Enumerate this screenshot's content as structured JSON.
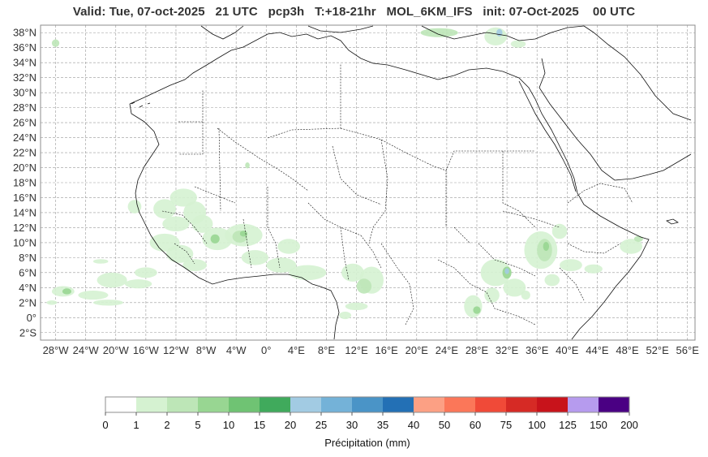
{
  "title": "Valid: Tue, 07-oct-2025   21 UTC   pcp3h   T:+18-21hr   MOL_6KM_IFS   init: 07-Oct-2025    00 UTC",
  "map": {
    "lon_range": [
      -30,
      57
    ],
    "lat_range": [
      -3,
      39
    ],
    "lat_ticks": [
      {
        "value": 38,
        "label": "38°N"
      },
      {
        "value": 36,
        "label": "36°N"
      },
      {
        "value": 34,
        "label": "34°N"
      },
      {
        "value": 32,
        "label": "32°N"
      },
      {
        "value": 30,
        "label": "30°N"
      },
      {
        "value": 28,
        "label": "28°N"
      },
      {
        "value": 26,
        "label": "26°N"
      },
      {
        "value": 24,
        "label": "24°N"
      },
      {
        "value": 22,
        "label": "22°N"
      },
      {
        "value": 20,
        "label": "20°N"
      },
      {
        "value": 18,
        "label": "18°N"
      },
      {
        "value": 16,
        "label": "16°N"
      },
      {
        "value": 14,
        "label": "14°N"
      },
      {
        "value": 12,
        "label": "12°N"
      },
      {
        "value": 10,
        "label": "10°N"
      },
      {
        "value": 8,
        "label": "8°N"
      },
      {
        "value": 6,
        "label": "6°N"
      },
      {
        "value": 4,
        "label": "4°N"
      },
      {
        "value": 2,
        "label": "2°N"
      },
      {
        "value": 0,
        "label": "0°"
      },
      {
        "value": -2,
        "label": "2°S"
      }
    ],
    "lon_ticks": [
      {
        "value": -28,
        "label": "28°W"
      },
      {
        "value": -24,
        "label": "24°W"
      },
      {
        "value": -20,
        "label": "20°W"
      },
      {
        "value": -16,
        "label": "16°W"
      },
      {
        "value": -12,
        "label": "12°W"
      },
      {
        "value": -8,
        "label": "8°W"
      },
      {
        "value": -4,
        "label": "4°W"
      },
      {
        "value": 0,
        "label": "0°"
      },
      {
        "value": 4,
        "label": "4°E"
      },
      {
        "value": 8,
        "label": "8°E"
      },
      {
        "value": 12,
        "label": "12°E"
      },
      {
        "value": 16,
        "label": "16°E"
      },
      {
        "value": 20,
        "label": "20°E"
      },
      {
        "value": 24,
        "label": "24°E"
      },
      {
        "value": 28,
        "label": "28°E"
      },
      {
        "value": 32,
        "label": "32°E"
      },
      {
        "value": 36,
        "label": "36°E"
      },
      {
        "value": 40,
        "label": "40°E"
      },
      {
        "value": 44,
        "label": "44°E"
      },
      {
        "value": 48,
        "label": "48°E"
      },
      {
        "value": 52,
        "label": "52°E"
      },
      {
        "value": 56,
        "label": "56°E"
      }
    ],
    "grid": true,
    "coast_color": "#111111",
    "precip_areas": [
      {
        "lon": -17.5,
        "lat": 14.8,
        "rlon": 0.9,
        "rlat": 0.9,
        "level": 1
      },
      {
        "lon": -13.5,
        "lat": 14.5,
        "rlon": 1.5,
        "rlat": 1.3,
        "level": 1
      },
      {
        "lon": -11.0,
        "lat": 16.0,
        "rlon": 1.8,
        "rlat": 1.2,
        "level": 1
      },
      {
        "lon": -9.5,
        "lat": 14.0,
        "rlon": 1.5,
        "rlat": 1.5,
        "level": 1
      },
      {
        "lon": -8.5,
        "lat": 12.5,
        "rlon": 1.4,
        "rlat": 1.2,
        "level": 1
      },
      {
        "lon": -12.0,
        "lat": 12.5,
        "rlon": 1.8,
        "rlat": 1.0,
        "level": 1
      },
      {
        "lon": -13.5,
        "lat": 10.0,
        "rlon": 2.0,
        "rlat": 1.2,
        "level": 1
      },
      {
        "lon": -11.5,
        "lat": 8.5,
        "rlon": 1.8,
        "rlat": 1.2,
        "level": 1
      },
      {
        "lon": -9.5,
        "lat": 7.0,
        "rlon": 1.6,
        "rlat": 0.8,
        "level": 1
      },
      {
        "lon": -6.5,
        "lat": 10.5,
        "rlon": 2.0,
        "rlat": 1.5,
        "level": 1
      },
      {
        "lon": -6.8,
        "lat": 10.5,
        "rlon": 0.6,
        "rlat": 0.6,
        "level": 3
      },
      {
        "lon": -3.0,
        "lat": 11.0,
        "rlon": 2.5,
        "rlat": 1.5,
        "level": 1
      },
      {
        "lon": -3.5,
        "lat": 10.8,
        "rlon": 1.0,
        "rlat": 0.8,
        "level": 2
      },
      {
        "lon": -3.0,
        "lat": 11.2,
        "rlon": 0.5,
        "rlat": 0.4,
        "level": 3
      },
      {
        "lon": -1.5,
        "lat": 8.0,
        "rlon": 1.8,
        "rlat": 1.0,
        "level": 1
      },
      {
        "lon": 2.0,
        "lat": 7.0,
        "rlon": 2.0,
        "rlat": 1.0,
        "level": 1
      },
      {
        "lon": 5.5,
        "lat": 6.0,
        "rlon": 2.5,
        "rlat": 1.0,
        "level": 1
      },
      {
        "lon": 3.0,
        "lat": 9.5,
        "rlon": 1.5,
        "rlat": 1.0,
        "level": 1
      },
      {
        "lon": 11.5,
        "lat": 6.0,
        "rlon": 1.5,
        "rlat": 1.2,
        "level": 1
      },
      {
        "lon": 14.0,
        "lat": 5.0,
        "rlon": 1.6,
        "rlat": 1.8,
        "level": 1
      },
      {
        "lon": 13.0,
        "lat": 4.2,
        "rlon": 1.0,
        "rlat": 1.0,
        "level": 2
      },
      {
        "lon": 12.0,
        "lat": 1.5,
        "rlon": 1.5,
        "rlat": 0.5,
        "level": 1
      },
      {
        "lon": 10.5,
        "lat": 0.3,
        "rlon": 0.8,
        "rlat": 0.5,
        "level": 1
      },
      {
        "lon": 27.5,
        "lat": 1.5,
        "rlon": 1.2,
        "rlat": 1.5,
        "level": 1
      },
      {
        "lon": 28.0,
        "lat": 1.0,
        "rlon": 0.5,
        "rlat": 0.5,
        "level": 3
      },
      {
        "lon": 30.5,
        "lat": 6.0,
        "rlon": 2.0,
        "rlat": 1.8,
        "level": 1
      },
      {
        "lon": 32.0,
        "lat": 6.0,
        "rlon": 0.6,
        "rlat": 0.8,
        "level": 3
      },
      {
        "lon": 32.0,
        "lat": 6.2,
        "rlon": 0.3,
        "rlat": 0.4,
        "level": 6
      },
      {
        "lon": 33.0,
        "lat": 4.0,
        "rlon": 1.5,
        "rlat": 1.2,
        "level": 1
      },
      {
        "lon": 30.0,
        "lat": 3.0,
        "rlon": 1.0,
        "rlat": 1.0,
        "level": 1
      },
      {
        "lon": 36.5,
        "lat": 9.0,
        "rlon": 2.2,
        "rlat": 2.5,
        "level": 1
      },
      {
        "lon": 37.0,
        "lat": 9.0,
        "rlon": 1.0,
        "rlat": 1.5,
        "level": 2
      },
      {
        "lon": 37.2,
        "lat": 9.5,
        "rlon": 0.4,
        "rlat": 0.6,
        "level": 3
      },
      {
        "lon": 39.0,
        "lat": 11.5,
        "rlon": 1.0,
        "rlat": 1.0,
        "level": 1
      },
      {
        "lon": 40.5,
        "lat": 7.0,
        "rlon": 1.5,
        "rlat": 0.8,
        "level": 1
      },
      {
        "lon": 38.0,
        "lat": 5.0,
        "rlon": 1.0,
        "rlat": 0.8,
        "level": 1
      },
      {
        "lon": 43.5,
        "lat": 6.5,
        "rlon": 1.2,
        "rlat": 0.6,
        "level": 1
      },
      {
        "lon": 48.5,
        "lat": 9.5,
        "rlon": 1.5,
        "rlat": 1.0,
        "level": 1
      },
      {
        "lon": 49.5,
        "lat": 10.5,
        "rlon": 0.6,
        "rlat": 0.4,
        "level": 2
      },
      {
        "lon": 34.5,
        "lat": 3.0,
        "rlon": 0.6,
        "rlat": 0.6,
        "level": 1
      },
      {
        "lon": -27.0,
        "lat": 3.5,
        "rlon": 1.5,
        "rlat": 0.7,
        "level": 1
      },
      {
        "lon": -26.5,
        "lat": 3.5,
        "rlon": 0.6,
        "rlat": 0.4,
        "level": 3
      },
      {
        "lon": -23.0,
        "lat": 3.0,
        "rlon": 2.0,
        "rlat": 0.6,
        "level": 1
      },
      {
        "lon": -20.5,
        "lat": 5.0,
        "rlon": 2.0,
        "rlat": 1.0,
        "level": 1
      },
      {
        "lon": -17.0,
        "lat": 4.5,
        "rlon": 1.8,
        "rlat": 0.6,
        "level": 1
      },
      {
        "lon": -16.0,
        "lat": 6.0,
        "rlon": 1.5,
        "rlat": 0.7,
        "level": 1
      },
      {
        "lon": -21.0,
        "lat": 2.0,
        "rlon": 2.0,
        "rlat": 0.4,
        "level": 1
      },
      {
        "lon": -28.5,
        "lat": 2.0,
        "rlon": 0.7,
        "rlat": 0.3,
        "level": 1
      },
      {
        "lon": -22.0,
        "lat": 7.5,
        "rlon": 1.0,
        "rlat": 0.3,
        "level": 1
      },
      {
        "lon": -28.0,
        "lat": 36.6,
        "rlon": 0.5,
        "rlat": 0.5,
        "level": 2
      },
      {
        "lon": 23.0,
        "lat": 38.0,
        "rlon": 2.5,
        "rlat": 0.6,
        "level": 2
      },
      {
        "lon": 30.5,
        "lat": 37.5,
        "rlon": 1.5,
        "rlat": 1.2,
        "level": 1
      },
      {
        "lon": 31.0,
        "lat": 38.0,
        "rlon": 0.4,
        "rlat": 0.5,
        "level": 6
      },
      {
        "lon": 33.5,
        "lat": 36.5,
        "rlon": 1.0,
        "rlat": 0.5,
        "level": 1
      },
      {
        "lon": -2.5,
        "lat": 20.3,
        "rlon": 0.3,
        "rlat": 0.4,
        "level": 2
      }
    ]
  },
  "colorbar": {
    "title": "Précipitation (mm)",
    "levels": [
      "0",
      "1",
      "2",
      "5",
      "10",
      "15",
      "20",
      "25",
      "30",
      "35",
      "40",
      "50",
      "60",
      "75",
      "100",
      "125",
      "150",
      "200"
    ],
    "colors": [
      "#ffffff",
      "#d5f2d1",
      "#bde6b7",
      "#98d692",
      "#6fc373",
      "#40aa5c",
      "#a2cbe3",
      "#74b2d8",
      "#4a94c7",
      "#2370b5",
      "#fca084",
      "#fb7759",
      "#f04a38",
      "#d62a25",
      "#c8131b",
      "#b69bee",
      "#4a0083"
    ]
  }
}
